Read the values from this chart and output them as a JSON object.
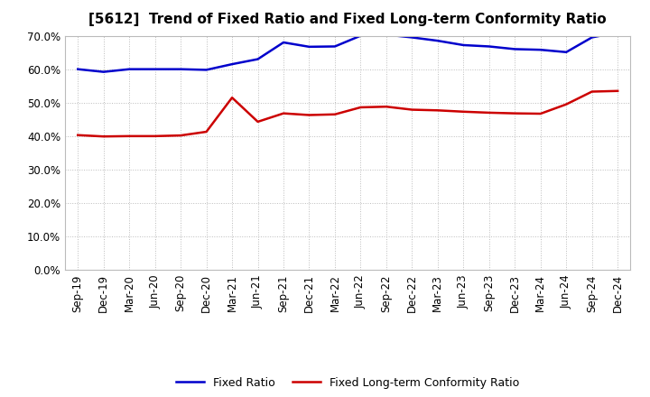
{
  "title": "[5612]  Trend of Fixed Ratio and Fixed Long-term Conformity Ratio",
  "x_labels": [
    "Sep-19",
    "Dec-19",
    "Mar-20",
    "Jun-20",
    "Sep-20",
    "Dec-20",
    "Mar-21",
    "Jun-21",
    "Sep-21",
    "Dec-21",
    "Mar-22",
    "Jun-22",
    "Sep-22",
    "Dec-22",
    "Mar-23",
    "Jun-23",
    "Sep-23",
    "Dec-23",
    "Mar-24",
    "Jun-24",
    "Sep-24",
    "Dec-24"
  ],
  "fixed_ratio": [
    0.6,
    0.592,
    0.6,
    0.6,
    0.6,
    0.598,
    0.615,
    0.63,
    0.68,
    0.667,
    0.668,
    0.7,
    0.703,
    0.695,
    0.685,
    0.672,
    0.668,
    0.66,
    0.658,
    0.651,
    0.695,
    0.71
  ],
  "fixed_lt_ratio": [
    0.403,
    0.399,
    0.4,
    0.4,
    0.402,
    0.413,
    0.515,
    0.443,
    0.468,
    0.463,
    0.465,
    0.486,
    0.488,
    0.479,
    0.477,
    0.473,
    0.47,
    0.468,
    0.467,
    0.495,
    0.533,
    0.535
  ],
  "fixed_ratio_color": "#0000CC",
  "fixed_lt_ratio_color": "#CC0000",
  "ylim": [
    0.0,
    0.7
  ],
  "yticks": [
    0.0,
    0.1,
    0.2,
    0.3,
    0.4,
    0.5,
    0.6,
    0.7
  ],
  "legend_fixed": "Fixed Ratio",
  "legend_fixed_lt": "Fixed Long-term Conformity Ratio",
  "background_color": "#FFFFFF",
  "plot_bg_color": "#FFFFFF",
  "grid_color": "#BBBBBB",
  "title_fontsize": 11,
  "tick_fontsize": 8.5,
  "legend_fontsize": 9
}
